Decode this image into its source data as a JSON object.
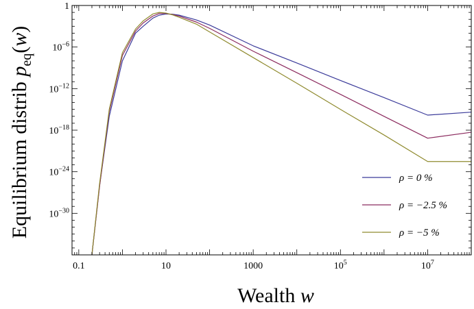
{
  "chart_data": {
    "type": "line",
    "xlabel": "Wealth w",
    "ylabel": "Equilibrium distrib p_eq(w)",
    "x_scale": "log",
    "y_scale": "log",
    "xlim": [
      0.07,
      100000000
    ],
    "ylim": [
      1e-36,
      1
    ],
    "x_ticks": [
      {
        "value": 0.1,
        "label": "0.1"
      },
      {
        "value": 10,
        "label": "10"
      },
      {
        "value": 1000,
        "label": "1000"
      },
      {
        "value": 100000,
        "label": "10",
        "exponent": "5"
      },
      {
        "value": 10000000,
        "label": "10",
        "exponent": "7"
      }
    ],
    "y_ticks": [
      {
        "value": 1,
        "label": "1",
        "exponent": ""
      },
      {
        "value": 1e-06,
        "label": "10",
        "exponent": "−6"
      },
      {
        "value": 1e-12,
        "label": "10",
        "exponent": "−12"
      },
      {
        "value": 1e-18,
        "label": "10",
        "exponent": "−18"
      },
      {
        "value": 1e-24,
        "label": "10",
        "exponent": "−24"
      },
      {
        "value": 1e-30,
        "label": "10",
        "exponent": "−30"
      }
    ],
    "grid": false,
    "legend_position": "bottom-right",
    "series": [
      {
        "name": "ρ = 0 %",
        "color": "#3b3b9a",
        "x": [
          0.2,
          0.3,
          0.5,
          1,
          2,
          3,
          5,
          7,
          10,
          14,
          20,
          50,
          100,
          1000,
          10000,
          100000,
          1000000,
          10000000,
          100000000
        ],
        "y": [
          1e-36,
          1e-26,
          1e-16,
          1e-08,
          0.0001,
          0.001,
          0.015,
          0.04,
          0.06,
          0.055,
          0.04,
          0.008,
          0.0015,
          1.5e-06,
          5e-09,
          1.5e-11,
          5e-14,
          1.5e-16,
          4e-16
        ]
      },
      {
        "name": "ρ = −2.5 %",
        "color": "#8b2a5e",
        "x": [
          0.2,
          0.3,
          0.5,
          1,
          2,
          3,
          5,
          7,
          10,
          14,
          20,
          50,
          100,
          1000,
          10000,
          100000,
          1000000,
          10000000,
          100000000
        ],
        "y": [
          1e-36,
          8e-27,
          5e-16,
          6e-08,
          0.0002,
          0.003,
          0.03,
          0.07,
          0.07,
          0.05,
          0.03,
          0.004,
          0.0005,
          2.5e-07,
          2e-10,
          1.5e-13,
          1e-16,
          7e-20,
          5e-19
        ]
      },
      {
        "name": "ρ = −5 %",
        "color": "#8f8a2e",
        "x": [
          0.2,
          0.3,
          0.5,
          1,
          2,
          3,
          5,
          7,
          10,
          14,
          20,
          50,
          100,
          1000,
          10000,
          100000,
          1000000,
          10000000,
          100000000
        ],
        "y": [
          1e-36,
          2e-26,
          1e-15,
          1.5e-07,
          0.0004,
          0.006,
          0.06,
          0.1,
          0.08,
          0.045,
          0.02,
          0.002,
          0.00015,
          3e-08,
          6e-12,
          1e-15,
          2e-19,
          3e-23,
          3e-23
        ]
      }
    ]
  }
}
